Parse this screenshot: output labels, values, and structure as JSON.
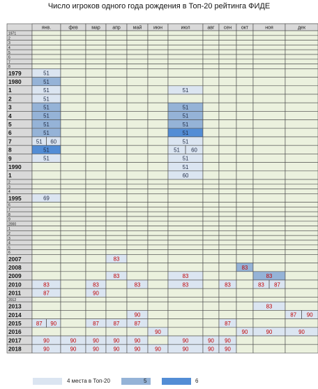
{
  "title": "Число игроков одного года рождения в Топ-20 рейтинга ФИДЕ",
  "colors": {
    "base": "#ebf1de",
    "header": "#d9d9d9",
    "year_col": "#d9d9d9",
    "grid": "#4a4a4a",
    "level4": "#dbe5f1",
    "level5": "#95b3d7",
    "level6": "#538dd5",
    "rating_dark": "#1f2a44",
    "rating_red": "#c00000"
  },
  "legend": [
    {
      "label": "4 места в Топ-20",
      "level": 4
    },
    {
      "label": "5",
      "level": 5
    },
    {
      "label": "6",
      "level": 6
    }
  ],
  "chart_data": {
    "type": "table",
    "title": "Число игроков одного года рождения в Топ-20 рейтинга ФИДЕ",
    "columns": [
      "янв.",
      "фев",
      "мар",
      "апр",
      "май",
      "июн",
      "июл",
      "авг",
      "сен",
      "окт",
      "ноя",
      "дек"
    ],
    "rows": [
      {
        "label": "1971",
        "small": true,
        "cells": []
      },
      {
        "label": "2",
        "small": true,
        "cells": []
      },
      {
        "label": "3",
        "small": true,
        "cells": []
      },
      {
        "label": "4",
        "small": true,
        "cells": []
      },
      {
        "label": "5",
        "small": true,
        "cells": []
      },
      {
        "label": "6",
        "small": true,
        "cells": []
      },
      {
        "label": "7",
        "small": true,
        "cells": []
      },
      {
        "label": "8",
        "small": true,
        "cells": []
      },
      {
        "label": "1979",
        "cells": [
          {
            "col": 0,
            "level": 4,
            "values": [
              "51"
            ]
          }
        ]
      },
      {
        "label": "1980",
        "cells": [
          {
            "col": 0,
            "level": 5,
            "values": [
              "51"
            ]
          }
        ]
      },
      {
        "label": "1",
        "cells": [
          {
            "col": 0,
            "level": 4,
            "values": [
              "51"
            ]
          },
          {
            "col": 6,
            "level": 4,
            "values": [
              "51"
            ]
          }
        ]
      },
      {
        "label": "2",
        "cells": [
          {
            "col": 0,
            "level": 4,
            "values": [
              "51"
            ]
          }
        ]
      },
      {
        "label": "3",
        "cells": [
          {
            "col": 0,
            "level": 5,
            "values": [
              "51"
            ]
          },
          {
            "col": 6,
            "level": 5,
            "values": [
              "51"
            ]
          }
        ]
      },
      {
        "label": "4",
        "cells": [
          {
            "col": 0,
            "level": 5,
            "values": [
              "51"
            ]
          },
          {
            "col": 6,
            "level": 5,
            "values": [
              "51"
            ]
          }
        ]
      },
      {
        "label": "5",
        "cells": [
          {
            "col": 0,
            "level": 5,
            "values": [
              "51"
            ]
          },
          {
            "col": 6,
            "level": 5,
            "values": [
              "51"
            ]
          }
        ]
      },
      {
        "label": "6",
        "cells": [
          {
            "col": 0,
            "level": 5,
            "values": [
              "51"
            ]
          },
          {
            "col": 6,
            "level": 6,
            "values": [
              "51"
            ]
          }
        ]
      },
      {
        "label": "7",
        "cells": [
          {
            "col": 0,
            "level": 4,
            "values": [
              "51",
              "60"
            ]
          },
          {
            "col": 6,
            "level": 4,
            "values": [
              "51"
            ]
          }
        ]
      },
      {
        "label": "8",
        "cells": [
          {
            "col": 0,
            "level": 6,
            "values": [
              "51"
            ]
          },
          {
            "col": 6,
            "level": 4,
            "values": [
              "51",
              "60"
            ]
          }
        ]
      },
      {
        "label": "9",
        "cells": [
          {
            "col": 0,
            "level": 4,
            "values": [
              "51"
            ]
          },
          {
            "col": 6,
            "level": 4,
            "values": [
              "51"
            ]
          }
        ]
      },
      {
        "label": "1990",
        "cells": [
          {
            "col": 6,
            "level": 4,
            "values": [
              "51"
            ]
          }
        ]
      },
      {
        "label": "1",
        "cells": [
          {
            "col": 6,
            "level": 4,
            "values": [
              "60"
            ]
          }
        ]
      },
      {
        "label": "2",
        "small": true,
        "cells": []
      },
      {
        "label": "3",
        "small": true,
        "cells": []
      },
      {
        "label": "4",
        "small": true,
        "cells": []
      },
      {
        "label": "1995",
        "cells": [
          {
            "col": 0,
            "level": 4,
            "values": [
              "69"
            ]
          }
        ]
      },
      {
        "label": "6",
        "small": true,
        "cells": []
      },
      {
        "label": "7",
        "small": true,
        "cells": []
      },
      {
        "label": "8",
        "small": true,
        "cells": []
      },
      {
        "label": "9",
        "small": true,
        "cells": []
      },
      {
        "label": "2000",
        "small": true,
        "cells": []
      },
      {
        "label": "1",
        "small": true,
        "cells": []
      },
      {
        "label": "2",
        "small": true,
        "cells": []
      },
      {
        "label": "3",
        "small": true,
        "cells": []
      },
      {
        "label": "4",
        "small": true,
        "cells": []
      },
      {
        "label": "5",
        "small": true,
        "cells": []
      },
      {
        "label": "6",
        "small": true,
        "cells": []
      },
      {
        "label": "2007",
        "cells": [
          {
            "col": 3,
            "level": 4,
            "values": [
              "83"
            ]
          }
        ]
      },
      {
        "label": "2008",
        "cells": [
          {
            "col": 9,
            "level": 5,
            "values": [
              "83"
            ]
          }
        ]
      },
      {
        "label": "2009",
        "cells": [
          {
            "col": 3,
            "level": 4,
            "values": [
              "83"
            ]
          },
          {
            "col": 6,
            "level": 4,
            "values": [
              "83"
            ]
          },
          {
            "col": 10,
            "level": 5,
            "values": [
              "83"
            ]
          }
        ]
      },
      {
        "label": "2010",
        "cells": [
          {
            "col": 0,
            "level": 4,
            "values": [
              "83"
            ]
          },
          {
            "col": 2,
            "level": 4,
            "values": [
              "83"
            ]
          },
          {
            "col": 4,
            "level": 4,
            "values": [
              "83"
            ]
          },
          {
            "col": 6,
            "level": 4,
            "values": [
              "83"
            ]
          },
          {
            "col": 8,
            "level": 4,
            "values": [
              "83"
            ]
          },
          {
            "col": 10,
            "level": 4,
            "values": [
              "83",
              "87"
            ]
          }
        ]
      },
      {
        "label": "2011",
        "cells": [
          {
            "col": 0,
            "level": 4,
            "values": [
              "87"
            ]
          },
          {
            "col": 2,
            "level": 4,
            "values": [
              "90"
            ]
          }
        ]
      },
      {
        "label": "2012",
        "small": true,
        "cells": []
      },
      {
        "label": "2013",
        "cells": [
          {
            "col": 10,
            "level": 4,
            "values": [
              "83"
            ]
          }
        ]
      },
      {
        "label": "2014",
        "cells": [
          {
            "col": 4,
            "level": 4,
            "values": [
              "90"
            ]
          },
          {
            "col": 11,
            "level": 4,
            "values": [
              "87",
              "90"
            ]
          }
        ]
      },
      {
        "label": "2015",
        "cells": [
          {
            "col": 0,
            "level": 4,
            "values": [
              "87",
              "90"
            ]
          },
          {
            "col": 2,
            "level": 4,
            "values": [
              "87"
            ]
          },
          {
            "col": 3,
            "level": 4,
            "values": [
              "87"
            ]
          },
          {
            "col": 4,
            "level": 4,
            "values": [
              "87"
            ]
          },
          {
            "col": 8,
            "level": 4,
            "values": [
              "87"
            ]
          }
        ]
      },
      {
        "label": "2016",
        "cells": [
          {
            "col": 5,
            "level": 4,
            "values": [
              "90"
            ]
          },
          {
            "col": 9,
            "level": 4,
            "values": [
              "90"
            ]
          },
          {
            "col": 10,
            "level": 4,
            "values": [
              "90"
            ]
          },
          {
            "col": 11,
            "level": 4,
            "values": [
              "90"
            ]
          }
        ]
      },
      {
        "label": "2017",
        "cells": [
          {
            "col": 0,
            "level": 4,
            "values": [
              "90"
            ]
          },
          {
            "col": 1,
            "level": 4,
            "values": [
              "90"
            ]
          },
          {
            "col": 2,
            "level": 4,
            "values": [
              "90"
            ]
          },
          {
            "col": 3,
            "level": 4,
            "values": [
              "90"
            ]
          },
          {
            "col": 4,
            "level": 4,
            "values": [
              "90"
            ]
          },
          {
            "col": 6,
            "level": 4,
            "values": [
              "90"
            ]
          },
          {
            "col": 7,
            "level": 4,
            "values": [
              "90"
            ]
          },
          {
            "col": 8,
            "level": 4,
            "values": [
              "90"
            ]
          }
        ]
      },
      {
        "label": "2018",
        "cells": [
          {
            "col": 0,
            "level": 4,
            "values": [
              "90"
            ]
          },
          {
            "col": 1,
            "level": 4,
            "values": [
              "90"
            ]
          },
          {
            "col": 2,
            "level": 4,
            "values": [
              "90"
            ]
          },
          {
            "col": 3,
            "level": 4,
            "values": [
              "90"
            ]
          },
          {
            "col": 4,
            "level": 4,
            "values": [
              "90"
            ]
          },
          {
            "col": 5,
            "level": 4,
            "values": [
              "90"
            ]
          },
          {
            "col": 6,
            "level": 4,
            "values": [
              "90"
            ]
          },
          {
            "col": 7,
            "level": 4,
            "values": [
              "90"
            ]
          },
          {
            "col": 8,
            "level": 4,
            "values": [
              "90"
            ]
          }
        ]
      }
    ]
  }
}
